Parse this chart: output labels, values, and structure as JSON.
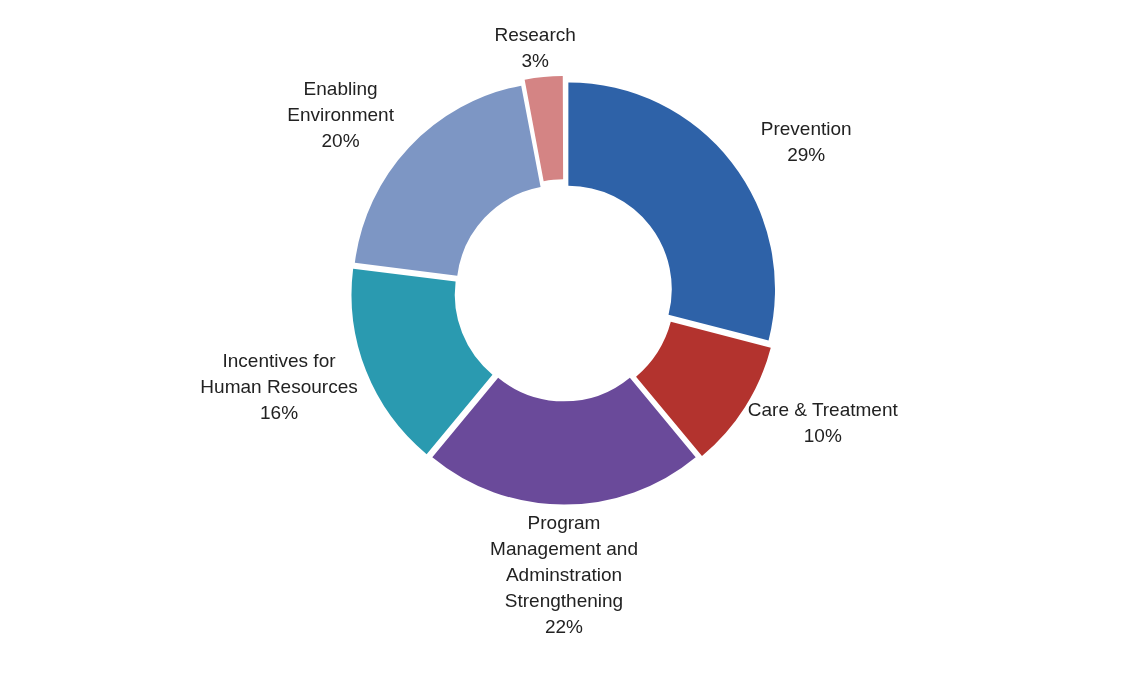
{
  "chart_data": {
    "type": "donut",
    "categories": [
      "Prevention",
      "Care & Treatment",
      "Program Management and Adminstration Strengthening",
      "Incentives for Human Resources",
      "Enabling Environment",
      "Research"
    ],
    "values": [
      29,
      10,
      22,
      16,
      20,
      3
    ],
    "value_labels": [
      "29%",
      "10%",
      "22%",
      "16%",
      "20%",
      "3%"
    ],
    "colors": [
      "#2e62a8",
      "#b3332e",
      "#6a4a9a",
      "#2a9ab0",
      "#7d96c4",
      "#d48484"
    ],
    "legend": false
  }
}
